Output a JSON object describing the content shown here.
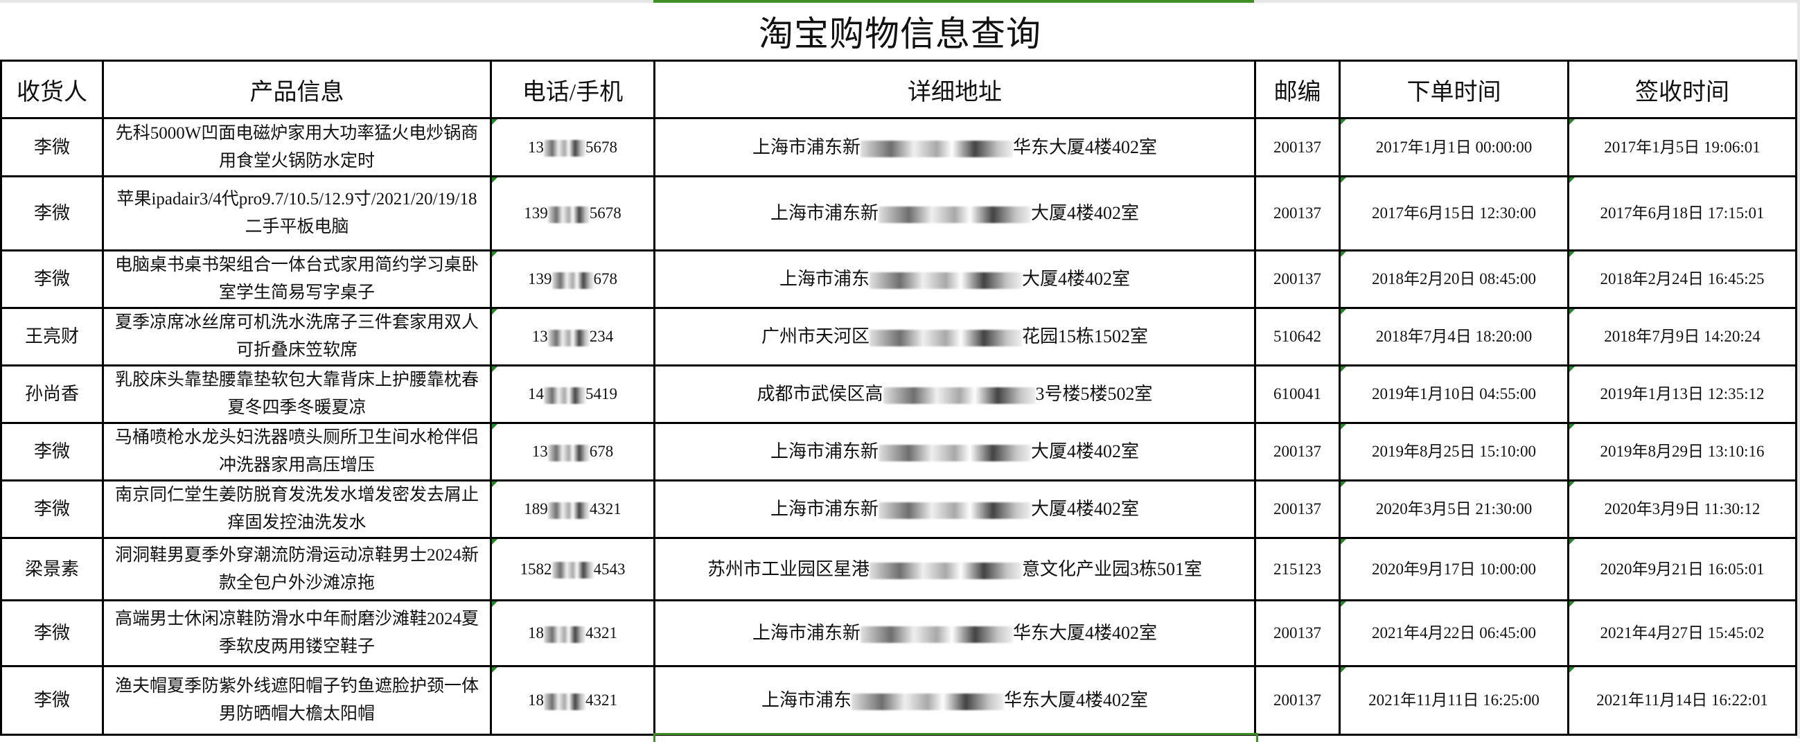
{
  "title": "淘宝购物信息查询",
  "accent_color": "#3f8f25",
  "headers": [
    "收货人",
    "产品信息",
    "电话/手机",
    "详细地址",
    "邮编",
    "下单时间",
    "签收时间"
  ],
  "rows": [
    {
      "name": "李微",
      "product": "先科5000W凹面电磁炉家用大功率猛火电炒锅商用食堂火锅防水定时",
      "phone_prefix": "13",
      "phone_suffix": "5678",
      "addr_prefix": "上海市浦东新",
      "addr_suffix": "华东大厦4楼402室",
      "zip": "200137",
      "order_time": "2017年1月1日 00:00:00",
      "sign_time": "2017年1月5日 19:06:01"
    },
    {
      "name": "李微",
      "product": "苹果ipadair3/4代pro9.7/10.5/12.9寸/2021/20/19/18二手平板电脑",
      "phone_prefix": "139",
      "phone_suffix": "5678",
      "addr_prefix": "上海市浦东新",
      "addr_suffix": "大厦4楼402室",
      "zip": "200137",
      "order_time": "2017年6月15日 12:30:00",
      "sign_time": "2017年6月18日 17:15:01"
    },
    {
      "name": "李微",
      "product": "电脑桌书桌书架组合一体台式家用简约学习桌卧室学生简易写字桌子",
      "phone_prefix": "139",
      "phone_suffix": "678",
      "addr_prefix": "上海市浦东",
      "addr_suffix": "大厦4楼402室",
      "zip": "200137",
      "order_time": "2018年2月20日 08:45:00",
      "sign_time": "2018年2月24日 16:45:25"
    },
    {
      "name": "王亮财",
      "product": "夏季凉席冰丝席可机洗水洗席子三件套家用双人可折叠床笠软席",
      "phone_prefix": "13",
      "phone_suffix": "234",
      "addr_prefix": "广州市天河区",
      "addr_suffix": "花园15栋1502室",
      "zip": "510642",
      "order_time": "2018年7月4日 18:20:00",
      "sign_time": "2018年7月9日 14:20:24"
    },
    {
      "name": "孙尚香",
      "product": "乳胶床头靠垫腰靠垫软包大靠背床上护腰靠枕春夏冬四季冬暖夏凉",
      "phone_prefix": "14",
      "phone_suffix": "5419",
      "addr_prefix": "成都市武侯区高",
      "addr_suffix": "3号楼5楼502室",
      "zip": "610041",
      "order_time": "2019年1月10日 04:55:00",
      "sign_time": "2019年1月13日 12:35:12"
    },
    {
      "name": "李微",
      "product": "马桶喷枪水龙头妇洗器喷头厕所卫生间水枪伴侣冲洗器家用高压增压",
      "phone_prefix": "13",
      "phone_suffix": "678",
      "addr_prefix": "上海市浦东新",
      "addr_suffix": "大厦4楼402室",
      "zip": "200137",
      "order_time": "2019年8月25日 15:10:00",
      "sign_time": "2019年8月29日 13:10:16"
    },
    {
      "name": "李微",
      "product": "南京同仁堂生姜防脱育发洗发水增发密发去屑止痒固发控油洗发水",
      "phone_prefix": "189",
      "phone_suffix": "4321",
      "addr_prefix": "上海市浦东新",
      "addr_suffix": "大厦4楼402室",
      "zip": "200137",
      "order_time": "2020年3月5日 21:30:00",
      "sign_time": "2020年3月9日 11:30:12"
    },
    {
      "name": "梁景素",
      "product": "洞洞鞋男夏季外穿潮流防滑运动凉鞋男士2024新款全包户外沙滩凉拖",
      "phone_prefix": "1582",
      "phone_suffix": "4543",
      "addr_prefix": "苏州市工业园区星港",
      "addr_suffix": "意文化产业园3栋501室",
      "zip": "215123",
      "order_time": "2020年9月17日 10:00:00",
      "sign_time": "2020年9月21日 16:05:01"
    },
    {
      "name": "李微",
      "product": "高端男士休闲凉鞋防滑水中年耐磨沙滩鞋2024夏季软皮两用镂空鞋子",
      "phone_prefix": "18",
      "phone_suffix": "4321",
      "addr_prefix": "上海市浦东新",
      "addr_suffix": "华东大厦4楼402室",
      "zip": "200137",
      "order_time": "2021年4月22日 06:45:00",
      "sign_time": "2021年4月27日 15:45:02"
    },
    {
      "name": "李微",
      "product": "渔夫帽夏季防紫外线遮阳帽子钓鱼遮脸护颈一体男防晒帽大檐太阳帽",
      "phone_prefix": "18",
      "phone_suffix": "4321",
      "addr_prefix": "上海市浦东",
      "addr_suffix": "华东大厦4楼402室",
      "zip": "200137",
      "order_time": "2021年11月11日 16:25:00",
      "sign_time": "2021年11月14日 16:22:01"
    }
  ]
}
